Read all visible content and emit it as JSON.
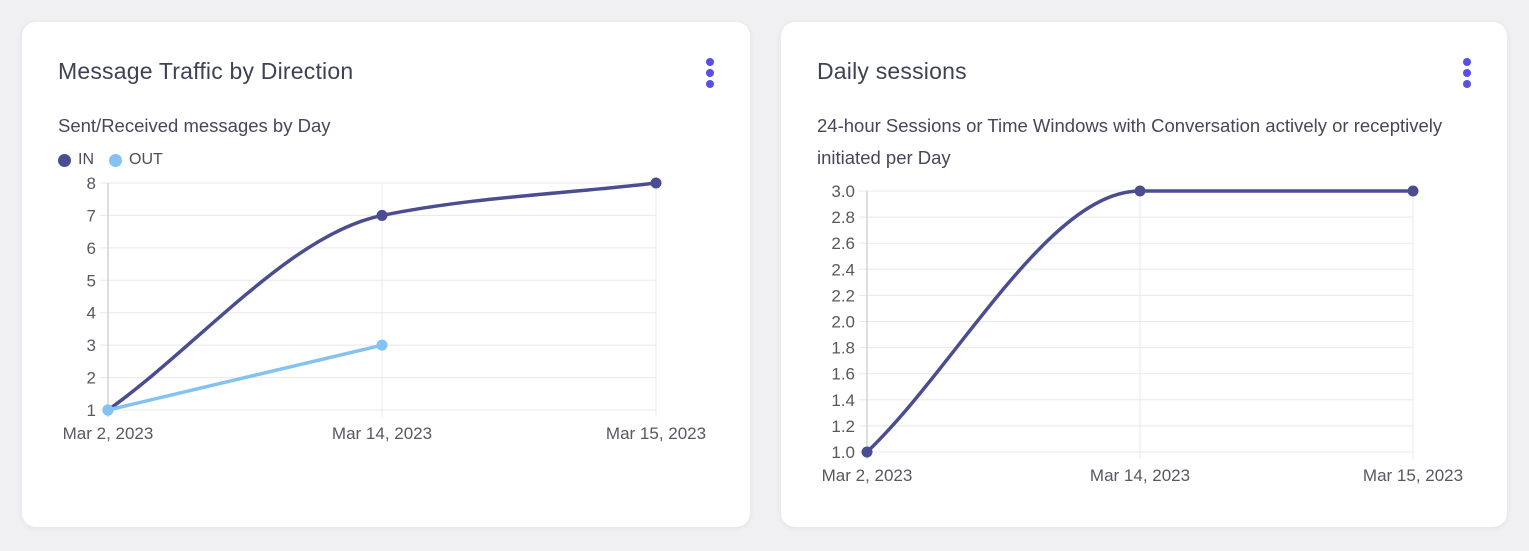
{
  "page_background": "#f0f0f3",
  "colors": {
    "accent_menu": "#5a4ee6",
    "grid": "#e8e8ec",
    "axis": "#cbccd3",
    "tick_text": "#575861",
    "series_in": "#4a4e91",
    "series_out": "#84c2f2"
  },
  "cards": [
    {
      "title": "Message Traffic by Direction",
      "subtitle": "Sent/Received messages by Day",
      "menu_icon": "kebab-menu"
    },
    {
      "title": "Daily sessions",
      "subtitle": "24-hour Sessions or Time Windows with Conversation actively or receptively initiated per Day",
      "menu_icon": "kebab-menu"
    }
  ],
  "chart_data": [
    {
      "type": "line",
      "title": "Message Traffic by Direction",
      "subtitle": "Sent/Received messages by Day",
      "categories": [
        "Mar 2, 2023",
        "Mar 14, 2023",
        "Mar 15, 2023"
      ],
      "series": [
        {
          "name": "IN",
          "color": "#4a4e91",
          "values": [
            1,
            7,
            8
          ]
        },
        {
          "name": "OUT",
          "color": "#84c2f2",
          "values": [
            1,
            3,
            null
          ]
        }
      ],
      "ylim": [
        1,
        8
      ],
      "ytick_step": 1,
      "ytick_decimals": 0,
      "grid": true,
      "legend_position": "top-left",
      "curve": "monotone"
    },
    {
      "type": "line",
      "title": "Daily sessions",
      "subtitle": "24-hour Sessions or Time Windows with Conversation actively or receptively initiated per Day",
      "categories": [
        "Mar 2, 2023",
        "Mar 14, 2023",
        "Mar 15, 2023"
      ],
      "series": [
        {
          "name": "Daily sessions",
          "color": "#4a4e91",
          "values": [
            1,
            3,
            3
          ]
        }
      ],
      "ylim": [
        1,
        3
      ],
      "ytick_step": 0.2,
      "ytick_decimals": 1,
      "grid": true,
      "legend_position": "none",
      "curve": "monotone"
    }
  ]
}
